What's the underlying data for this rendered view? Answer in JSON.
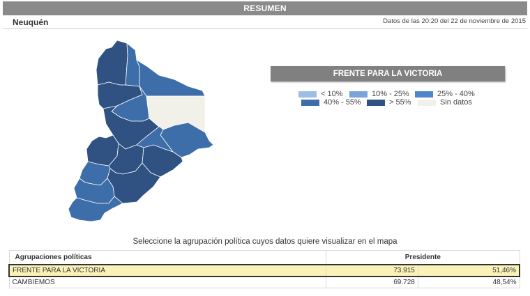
{
  "header": {
    "title": "RESUMEN",
    "province": "Neuquén",
    "timestamp": "Datos de las 20:20 del 22 de noviembre de 2015"
  },
  "map": {
    "selected_party": "FRENTE PARA LA VICTORIA",
    "colors": {
      "lt10": "#9dbde6",
      "10_25": "#7aa3dc",
      "25_40": "#4f86c9",
      "40_55": "#3e6ea9",
      "gt55": "#2f5282",
      "nodata": "#f1f0e9"
    },
    "legend": [
      {
        "key": "lt10",
        "label": "< 10%"
      },
      {
        "key": "10_25",
        "label": "10% - 25%"
      },
      {
        "key": "25_40",
        "label": "25% - 40%"
      },
      {
        "key": "40_55",
        "label": "40% - 55%"
      },
      {
        "key": "gt55",
        "label": "> 55%"
      },
      {
        "key": "nodata",
        "label": "Sin datos"
      }
    ]
  },
  "instruction": "Seleccione la agrupación política cuyos datos quiere visualizar en el mapa",
  "table": {
    "headers": {
      "party": "Agrupaciones políticas",
      "president": "Presidente"
    },
    "rows": [
      {
        "party": "FRENTE PARA LA VICTORIA",
        "votes": "73.915",
        "percent": "51,46%",
        "selected": true
      },
      {
        "party": "CAMBIEMOS",
        "votes": "69.728",
        "percent": "48,54%",
        "selected": false
      }
    ]
  }
}
